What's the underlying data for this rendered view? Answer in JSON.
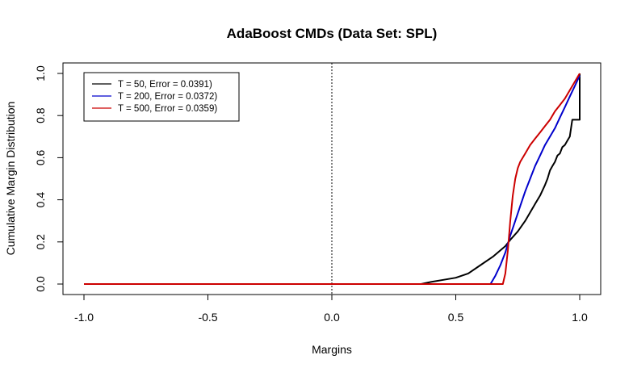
{
  "chart_data": {
    "type": "line",
    "title": "AdaBoost CMDs (Data Set: SPL)",
    "xlabel": "Margins",
    "ylabel": "Cumulative Margin Distribution",
    "xlim": [
      -1.0,
      1.0
    ],
    "ylim": [
      0.0,
      1.0
    ],
    "xticks": [
      "-1.0",
      "-0.5",
      "0.0",
      "0.5",
      "1.0"
    ],
    "yticks": [
      "0.0",
      "0.2",
      "0.4",
      "0.6",
      "0.8",
      "1.0"
    ],
    "grid": false,
    "legend_position": "top-left",
    "reference_line": {
      "x": 0.0,
      "style": "dotted"
    },
    "series": [
      {
        "name": "T = 50, Error = 0.0391)",
        "color": "#000000",
        "x": [
          -1.0,
          0.36,
          0.4,
          0.45,
          0.5,
          0.55,
          0.6,
          0.65,
          0.7,
          0.72,
          0.75,
          0.78,
          0.8,
          0.82,
          0.84,
          0.86,
          0.87,
          0.88,
          0.89,
          0.9,
          0.91,
          0.92,
          0.93,
          0.94,
          0.95,
          0.96,
          0.97,
          0.98,
          0.99,
          1.0,
          1.0,
          1.0
        ],
        "y": [
          0.0,
          0.0,
          0.01,
          0.02,
          0.03,
          0.05,
          0.09,
          0.13,
          0.18,
          0.21,
          0.25,
          0.3,
          0.34,
          0.38,
          0.42,
          0.47,
          0.5,
          0.54,
          0.56,
          0.58,
          0.61,
          0.62,
          0.65,
          0.66,
          0.68,
          0.7,
          0.78,
          0.78,
          0.78,
          0.78,
          1.0,
          1.0
        ]
      },
      {
        "name": "T = 200, Error = 0.0372)",
        "color": "#0000cc",
        "x": [
          -1.0,
          0.64,
          0.66,
          0.68,
          0.7,
          0.72,
          0.74,
          0.76,
          0.78,
          0.8,
          0.82,
          0.84,
          0.86,
          0.88,
          0.9,
          0.92,
          0.94,
          0.96,
          0.98,
          1.0
        ],
        "y": [
          0.0,
          0.0,
          0.04,
          0.09,
          0.15,
          0.23,
          0.3,
          0.37,
          0.44,
          0.5,
          0.56,
          0.61,
          0.66,
          0.7,
          0.74,
          0.79,
          0.84,
          0.89,
          0.94,
          0.99
        ]
      },
      {
        "name": "T = 500, Error = 0.0359)",
        "color": "#cc0000",
        "x": [
          -1.0,
          0.69,
          0.7,
          0.71,
          0.72,
          0.73,
          0.74,
          0.75,
          0.76,
          0.78,
          0.8,
          0.82,
          0.84,
          0.86,
          0.88,
          0.9,
          0.92,
          0.94,
          0.96,
          0.98,
          1.0
        ],
        "y": [
          0.0,
          0.0,
          0.05,
          0.16,
          0.3,
          0.42,
          0.5,
          0.55,
          0.58,
          0.62,
          0.66,
          0.69,
          0.72,
          0.75,
          0.78,
          0.82,
          0.85,
          0.88,
          0.92,
          0.96,
          1.0
        ]
      }
    ]
  }
}
